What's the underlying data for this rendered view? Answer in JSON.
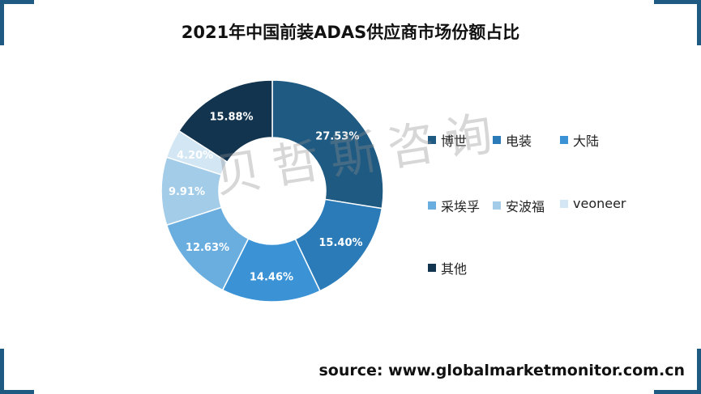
{
  "title": "2021年中国前装ADAS供应商市场份额占比",
  "watermark": "贝哲斯咨询",
  "source": "source: www.globalmarketmonitor.com.cn",
  "chart_data": {
    "type": "pie",
    "style": "donut",
    "title": "2021年中国前装ADAS供应商市场份额占比",
    "legend_position": "right",
    "slices": [
      {
        "label": "博世",
        "value": 27.53,
        "display": "27.53%",
        "color": "#1f5a82"
      },
      {
        "label": "电装",
        "value": 15.4,
        "display": "15.40%",
        "color": "#2a7bb8"
      },
      {
        "label": "大陆",
        "value": 14.46,
        "display": "14.46%",
        "color": "#3b93d6"
      },
      {
        "label": "采埃孚",
        "value": 12.63,
        "display": "12.63%",
        "color": "#6aaee0"
      },
      {
        "label": "安波福",
        "value": 9.91,
        "display": "9.91%",
        "color": "#a3cce9"
      },
      {
        "label": "veoneer",
        "value": 4.2,
        "display": "4.20%",
        "color": "#d3e6f4"
      },
      {
        "label": "其他",
        "value": 15.88,
        "display": "15.88%",
        "color": "#13344f"
      }
    ]
  }
}
